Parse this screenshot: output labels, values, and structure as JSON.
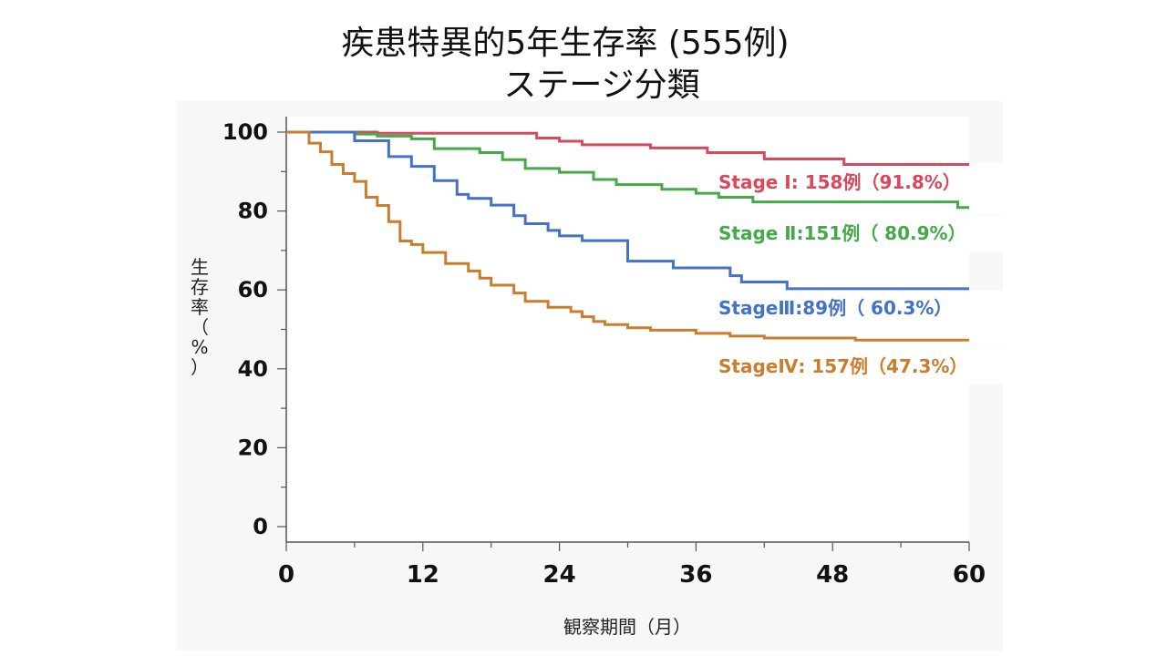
{
  "title_line1": "疾患特異的5年生存率 (555例)",
  "title_line2": "ステージ分類",
  "chart_data": {
    "type": "line",
    "step": true,
    "xlabel": "観察期間（月）",
    "ylabel": [
      "生",
      "存",
      "率",
      "（",
      "%",
      "）"
    ],
    "xlim": [
      0,
      60
    ],
    "ylim": [
      0,
      100
    ],
    "xticks": [
      0,
      12,
      24,
      36,
      48,
      60
    ],
    "xtick_labels": [
      "0",
      "12",
      "24",
      "36",
      "48",
      "60"
    ],
    "yticks": [
      0,
      20,
      40,
      60,
      80,
      100
    ],
    "ytick_labels": [
      "0",
      "20",
      "40",
      "60",
      "80",
      "100"
    ],
    "grid": false,
    "series": [
      {
        "name": "Stage I",
        "label": "Stage Ⅰ: 158例（91.8%）",
        "color": "#d9485c",
        "x": [
          0,
          8,
          21,
          22,
          24,
          26,
          32,
          37,
          42,
          49,
          60
        ],
        "y": [
          100,
          99.7,
          99.7,
          98.5,
          97.7,
          96.8,
          96.0,
          94.8,
          93.2,
          91.8,
          91.8
        ]
      },
      {
        "name": "Stage II",
        "label": "Stage Ⅱ:151例（ 80.9%）",
        "color": "#45a94a",
        "x": [
          0,
          6,
          8,
          11,
          13,
          17,
          19,
          21,
          24,
          27,
          29,
          33,
          36,
          38,
          41,
          59,
          60
        ],
        "y": [
          100,
          99.5,
          99.0,
          98.3,
          95.8,
          94.8,
          93.0,
          90.8,
          89.8,
          88.0,
          86.7,
          85.5,
          84.5,
          83.5,
          82.3,
          80.9,
          80.9
        ]
      },
      {
        "name": "Stage III",
        "label": "StageⅢ:89例（ 60.3%）",
        "color": "#4472c4",
        "x": [
          0,
          6,
          9,
          11,
          13,
          15,
          16,
          18,
          20,
          21,
          23,
          24,
          26,
          30,
          34,
          39,
          40,
          44,
          60
        ],
        "y": [
          100,
          97.8,
          93.8,
          91.3,
          87.7,
          84.2,
          83.2,
          81.5,
          78.8,
          76.8,
          75.1,
          73.7,
          72.5,
          67.3,
          65.6,
          63.6,
          62.0,
          60.3,
          60.3
        ]
      },
      {
        "name": "Stage IV",
        "label": "StageⅣ: 157例（47.3%）",
        "color": "#c87d2f",
        "x": [
          0,
          2,
          3,
          4,
          5,
          6,
          7,
          8,
          9,
          10,
          11,
          12,
          14,
          16,
          17,
          18,
          20,
          21,
          23,
          25,
          26,
          27,
          28,
          30,
          32,
          36,
          39,
          42,
          50,
          60
        ],
        "y": [
          100,
          97.2,
          95.0,
          91.8,
          89.5,
          87.5,
          83.5,
          81.4,
          77.3,
          72.4,
          71.5,
          69.5,
          66.7,
          64.8,
          63.0,
          61.2,
          59.2,
          57.1,
          55.6,
          54.5,
          53.2,
          52.0,
          51.2,
          50.4,
          49.8,
          49.0,
          48.3,
          47.8,
          47.3,
          47.3
        ]
      }
    ]
  }
}
